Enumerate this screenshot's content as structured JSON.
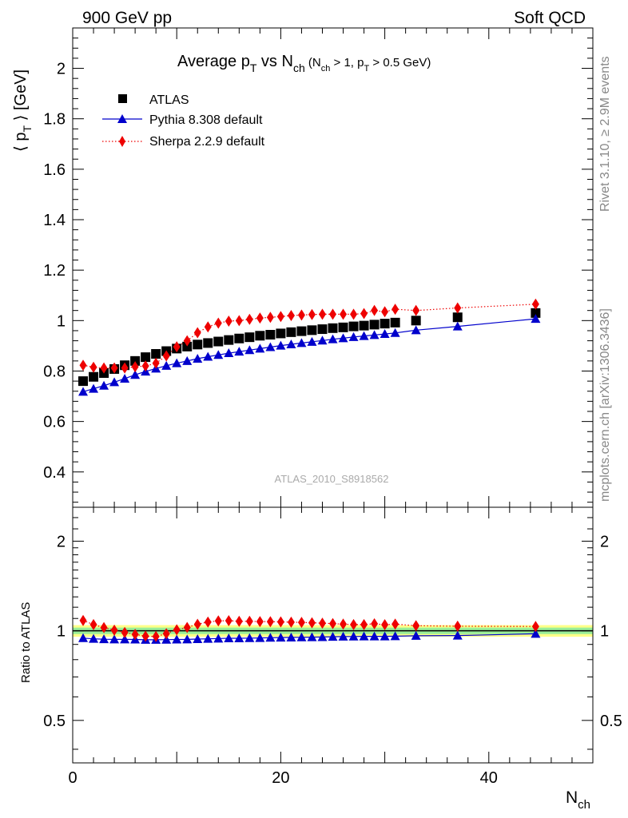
{
  "header": {
    "left_label": "900 GeV pp",
    "right_label": "Soft QCD",
    "side_label_top": "Rivet 3.1.10, ≥ 2.9M events",
    "side_label_bottom": "mcplots.cern.ch [arXiv:1306.3436]",
    "watermark": "ATLAS_2010_S8918562"
  },
  "chart_data": [
    {
      "type": "scatter",
      "panel": "main",
      "title": "Average p_T vs N_ch (N_ch > 1, p_T > 0.5 GeV)",
      "title_parts": {
        "main": "Average p",
        "sub1": "T",
        "mid": " vs N",
        "sub2": "ch",
        "cut_a": " (N",
        "sub3": "ch",
        "cut_b": " > 1, p",
        "sub4": "T",
        "cut_c": " > 0.5 GeV)"
      },
      "ylabel": "⟨ p_T ⟩ [GeV]",
      "ylabel_parts": {
        "pre": "⟨ p",
        "sub": "T",
        "post": " ⟩  [GeV]"
      },
      "xlim": [
        0,
        50
      ],
      "ylim": [
        0.26,
        2.16
      ],
      "yticks": [
        "0.4",
        "0.6",
        "0.8",
        "1",
        "1.2",
        "1.4",
        "1.6",
        "1.8",
        "2"
      ],
      "ytick_values": [
        0.4,
        0.6,
        0.8,
        1.0,
        1.2,
        1.4,
        1.6,
        1.8,
        2.0
      ],
      "legend_position": "top-left",
      "series": [
        {
          "name": "ATLAS",
          "marker": "square",
          "color": "#000000",
          "x": [
            1,
            2,
            3,
            4,
            5,
            6,
            7,
            8,
            9,
            10,
            11,
            12,
            13,
            14,
            15,
            16,
            17,
            18,
            19,
            20,
            21,
            22,
            23,
            24,
            25,
            26,
            27,
            28,
            29,
            30,
            31,
            33,
            37,
            44.5
          ],
          "y": [
            0.76,
            0.777,
            0.792,
            0.808,
            0.823,
            0.84,
            0.855,
            0.868,
            0.879,
            0.889,
            0.897,
            0.905,
            0.911,
            0.917,
            0.923,
            0.929,
            0.934,
            0.94,
            0.944,
            0.949,
            0.954,
            0.958,
            0.962,
            0.966,
            0.97,
            0.973,
            0.977,
            0.98,
            0.984,
            0.988,
            0.992,
            1.0,
            1.013,
            1.03
          ]
        },
        {
          "name": "Pythia 8.308 default",
          "marker": "triangle",
          "color": "#0000cc",
          "line": "solid",
          "x": [
            1,
            2,
            3,
            4,
            5,
            6,
            7,
            8,
            9,
            10,
            11,
            12,
            13,
            14,
            15,
            16,
            17,
            18,
            19,
            20,
            21,
            22,
            23,
            24,
            25,
            26,
            27,
            28,
            29,
            30,
            31,
            33,
            37,
            44.5
          ],
          "y": [
            0.718,
            0.73,
            0.742,
            0.756,
            0.77,
            0.785,
            0.798,
            0.81,
            0.821,
            0.831,
            0.84,
            0.849,
            0.857,
            0.864,
            0.871,
            0.877,
            0.883,
            0.889,
            0.895,
            0.901,
            0.906,
            0.911,
            0.916,
            0.921,
            0.926,
            0.93,
            0.935,
            0.939,
            0.943,
            0.947,
            0.951,
            0.962,
            0.977,
            1.007
          ]
        },
        {
          "name": "Sherpa 2.2.9 default",
          "marker": "diamond",
          "color": "#ee0000",
          "line": "dotted",
          "x": [
            1,
            2,
            3,
            4,
            5,
            6,
            7,
            8,
            9,
            10,
            11,
            12,
            13,
            14,
            15,
            16,
            17,
            18,
            19,
            20,
            21,
            22,
            23,
            24,
            25,
            26,
            27,
            28,
            29,
            30,
            31,
            33,
            37,
            44.5
          ],
          "y": [
            0.823,
            0.815,
            0.812,
            0.812,
            0.812,
            0.817,
            0.82,
            0.831,
            0.86,
            0.896,
            0.92,
            0.952,
            0.975,
            0.99,
            0.998,
            1.0,
            1.005,
            1.01,
            1.013,
            1.016,
            1.02,
            1.022,
            1.024,
            1.025,
            1.025,
            1.025,
            1.025,
            1.028,
            1.04,
            1.035,
            1.045,
            1.04,
            1.05,
            1.065
          ]
        }
      ]
    },
    {
      "type": "scatter",
      "panel": "ratio",
      "ylabel": "Ratio to ATLAS",
      "xlabel": "N_ch",
      "xlabel_parts": {
        "main": "N",
        "sub": "ch"
      },
      "xlim": [
        0,
        50
      ],
      "ylim": [
        0.36,
        2.6
      ],
      "log_y": true,
      "xticks": [
        "0",
        "20",
        "40"
      ],
      "xtick_values": [
        0,
        20,
        40
      ],
      "yticks": [
        "0.5",
        "1",
        "2"
      ],
      "ytick_values": [
        0.5,
        1,
        2
      ],
      "bands": [
        {
          "name": "stat+syst",
          "color": "#ffff88",
          "low": 0.955,
          "high": 1.045
        },
        {
          "name": "stat",
          "color": "#99ee99",
          "low": 0.975,
          "high": 1.025
        }
      ],
      "series": [
        {
          "name": "Pythia 8.308 default",
          "marker": "triangle",
          "color": "#0000cc",
          "line": "solid",
          "x": [
            1,
            2,
            3,
            4,
            5,
            6,
            7,
            8,
            9,
            10,
            11,
            12,
            13,
            14,
            15,
            16,
            17,
            18,
            19,
            20,
            21,
            22,
            23,
            24,
            25,
            26,
            27,
            28,
            29,
            30,
            31,
            33,
            37,
            44.5
          ],
          "y": [
            0.945,
            0.94,
            0.937,
            0.936,
            0.936,
            0.935,
            0.933,
            0.933,
            0.934,
            0.935,
            0.936,
            0.938,
            0.94,
            0.942,
            0.944,
            0.944,
            0.945,
            0.946,
            0.948,
            0.949,
            0.95,
            0.951,
            0.952,
            0.953,
            0.955,
            0.956,
            0.957,
            0.958,
            0.958,
            0.958,
            0.959,
            0.962,
            0.964,
            0.977
          ]
        },
        {
          "name": "Sherpa 2.2.9 default",
          "marker": "diamond",
          "color": "#ee0000",
          "line": "dotted",
          "x": [
            1,
            2,
            3,
            4,
            5,
            6,
            7,
            8,
            9,
            10,
            11,
            12,
            13,
            14,
            15,
            16,
            17,
            18,
            19,
            20,
            21,
            22,
            23,
            24,
            25,
            26,
            27,
            28,
            29,
            30,
            31,
            33,
            37,
            44.5
          ],
          "y": [
            1.083,
            1.049,
            1.025,
            1.005,
            0.987,
            0.973,
            0.959,
            0.957,
            0.978,
            1.008,
            1.026,
            1.052,
            1.07,
            1.08,
            1.081,
            1.076,
            1.076,
            1.074,
            1.073,
            1.071,
            1.069,
            1.067,
            1.064,
            1.061,
            1.057,
            1.053,
            1.049,
            1.049,
            1.056,
            1.048,
            1.053,
            1.04,
            1.036,
            1.034
          ]
        }
      ]
    }
  ]
}
